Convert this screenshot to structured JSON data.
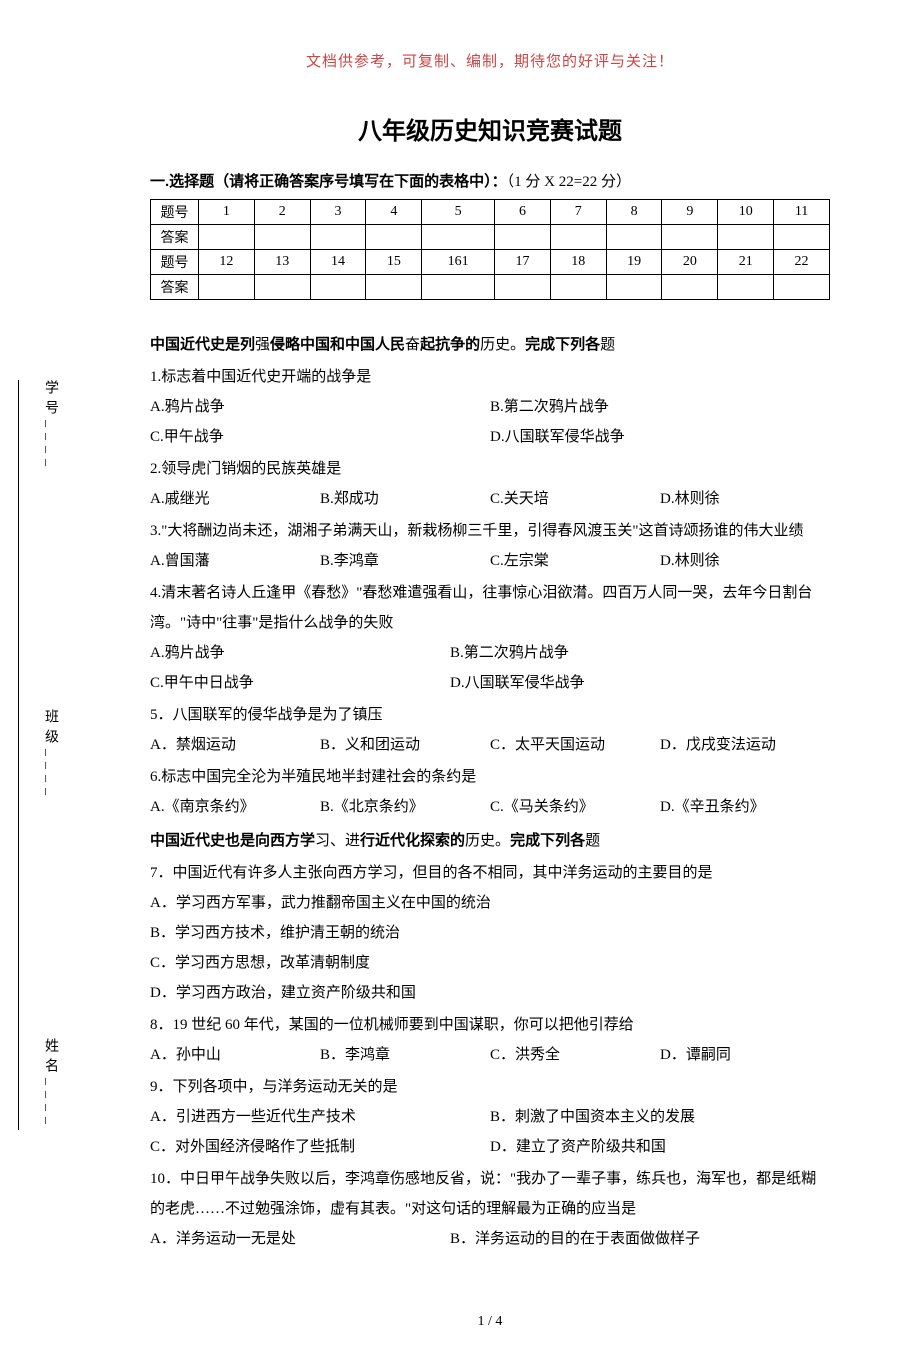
{
  "header_note": "文档供参考，可复制、编制，期待您的好评与关注！",
  "title": "八年级历史知识竞赛试题",
  "section1_prefix": "一.选择题（请将正确答案序号填写在下面的表格中）：",
  "section1_score": "（1 分 X 22=22 分）",
  "table": {
    "row_labels": [
      "题号",
      "答案",
      "题号",
      "答案"
    ],
    "row1": [
      "1",
      "2",
      "3",
      "4",
      "5",
      "6",
      "7",
      "8",
      "9",
      "10",
      "11"
    ],
    "row2": [
      "12",
      "13",
      "14",
      "15",
      "161",
      "17",
      "18",
      "19",
      "20",
      "21",
      "22"
    ]
  },
  "heading1": {
    "bold": "中国近代史是列",
    "plain1": "强",
    "bold2": "侵略中国和中国人民",
    "plain2": "奋",
    "bold3": "起抗争的",
    "plain3": "历史。",
    "bold4": "完成下列各",
    "plain4": "题"
  },
  "q1": "1.标志着中国近代史开端的战争是",
  "q1a": "A.鸦片战争",
  "q1b": "B.第二次鸦片战争",
  "q1c": "C.甲午战争",
  "q1d": "D.八国联军侵华战争",
  "q2": "2.领导虎门销烟的民族英雄是",
  "q2a": "A.戚继光",
  "q2b": "B.郑成功",
  "q2c": "C.关天培",
  "q2d": "D.林则徐",
  "q3": "3.\"大将酬边尚未还，湖湘子弟满天山，新栽杨柳三千里，引得春风渡玉关\"这首诗颂扬谁的伟大业绩",
  "q3a": "A.曾国藩",
  "q3b": "B.李鸿章",
  "q3c": "C.左宗棠",
  "q3d": "D.林则徐",
  "q4": "4.清末著名诗人丘逢甲《春愁》\"春愁难遣强看山，往事惊心泪欲潸。四百万人同一哭，去年今日割台湾。\"诗中\"往事\"是指什么战争的失败",
  "q4a": "A.鸦片战争",
  "q4b": "B.第二次鸦片战争",
  "q4c": "C.甲午中日战争",
  "q4d": "D.八国联军侵华战争",
  "q5": "5．八国联军的侵华战争是为了镇压",
  "q5a": "A．禁烟运动",
  "q5b": "B．义和团运动",
  "q5c": "C．太平天国运动",
  "q5d": "D．戊戌变法运动",
  "q6": "6.标志中国完全沦为半殖民地半封建社会的条约是",
  "q6a": "A.《南京条约》",
  "q6b": "B.《北京条约》",
  "q6c": "C.《马关条约》",
  "q6d": "D.《辛丑条约》",
  "heading2": {
    "bold": "中国近代史也是向西方学",
    "plain1": "习、进",
    "bold2": "行近代化探索的",
    "plain2": "历史。",
    "bold3": "完成下列各",
    "plain3": "题"
  },
  "q7": "7．中国近代有许多人主张向西方学习，但目的各不相同，其中洋务运动的主要目的是",
  "q7a": "A．学习西方军事，武力推翻帝国主义在中国的统治",
  "q7b": "B．学习西方技术，维护清王朝的统治",
  "q7c": "C．学习西方思想，改革清朝制度",
  "q7d": "D．学习西方政治，建立资产阶级共和国",
  "q8": "8．19 世纪 60 年代，某国的一位机械师要到中国谋职，你可以把他引荐给",
  "q8a": "A．孙中山",
  "q8b": "B．李鸿章",
  "q8c": "C．洪秀全",
  "q8d": "D．谭嗣同",
  "q9": "9．下列各项中，与洋务运动无关的是",
  "q9a": "A．引进西方一些近代生产技术",
  "q9b": "B．刺激了中国资本主义的发展",
  "q9c": "C．对外国经济侵略作了些抵制",
  "q9d": "D．建立了资产阶级共和国",
  "q10": "10．中日甲午战争失败以后，李鸿章伤感地反省，说：\"我办了一辈子事，练兵也，海军也，都是纸糊的老虎……不过勉强涂饰，虚有其表。\"对这句话的理解最为正确的应当是",
  "q10a": "A．洋务运动一无是处",
  "q10b": "B．洋务运动的目的在于表面做做样子",
  "footer": "1 / 4",
  "side": {
    "name": "姓名____",
    "class": "班级____",
    "id": "学号____"
  }
}
